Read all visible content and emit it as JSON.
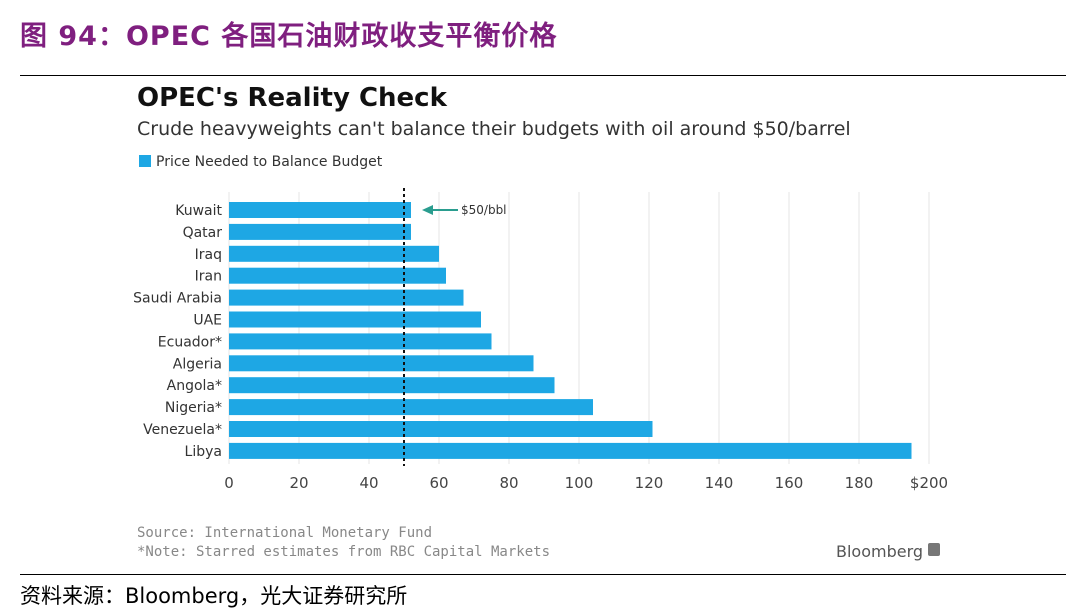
{
  "figure": {
    "title": "图 94：OPEC 各国石油财政收支平衡价格",
    "source": "资料来源：Bloomberg，光大证券研究所"
  },
  "chart_data": {
    "type": "bar",
    "orientation": "horizontal",
    "title": "OPEC's Reality Check",
    "subtitle": "Crude heavyweights can't balance their budgets with oil around $50/barrel",
    "categories": [
      "Kuwait",
      "Qatar",
      "Iraq",
      "Iran",
      "Saudi Arabia",
      "UAE",
      "Ecuador*",
      "Algeria",
      "Angola*",
      "Nigeria*",
      "Venezuela*",
      "Libya"
    ],
    "series": [
      {
        "name": "Price Needed to Balance Budget",
        "values": [
          52,
          52,
          60,
          62,
          67,
          72,
          75,
          87,
          93,
          104,
          121,
          195
        ]
      }
    ],
    "tick_labels": [
      "0",
      "20",
      "40",
      "60",
      "80",
      "100",
      "120",
      "140",
      "160",
      "180",
      "$200"
    ],
    "xlim": [
      0,
      200
    ],
    "reference_line": {
      "value": 50,
      "label": "$50/bbl"
    },
    "grid": true,
    "legend_position": "top-left",
    "source_note": "Source: International Monetary Fund",
    "footnote": "*Note: Starred estimates from RBC Capital Markets",
    "brand": "Bloomberg",
    "colors": {
      "bar": "#1ea7e4",
      "reference_line": "#111111",
      "arrow": "#2a9d8f",
      "grid": "#e6e6e6"
    }
  }
}
